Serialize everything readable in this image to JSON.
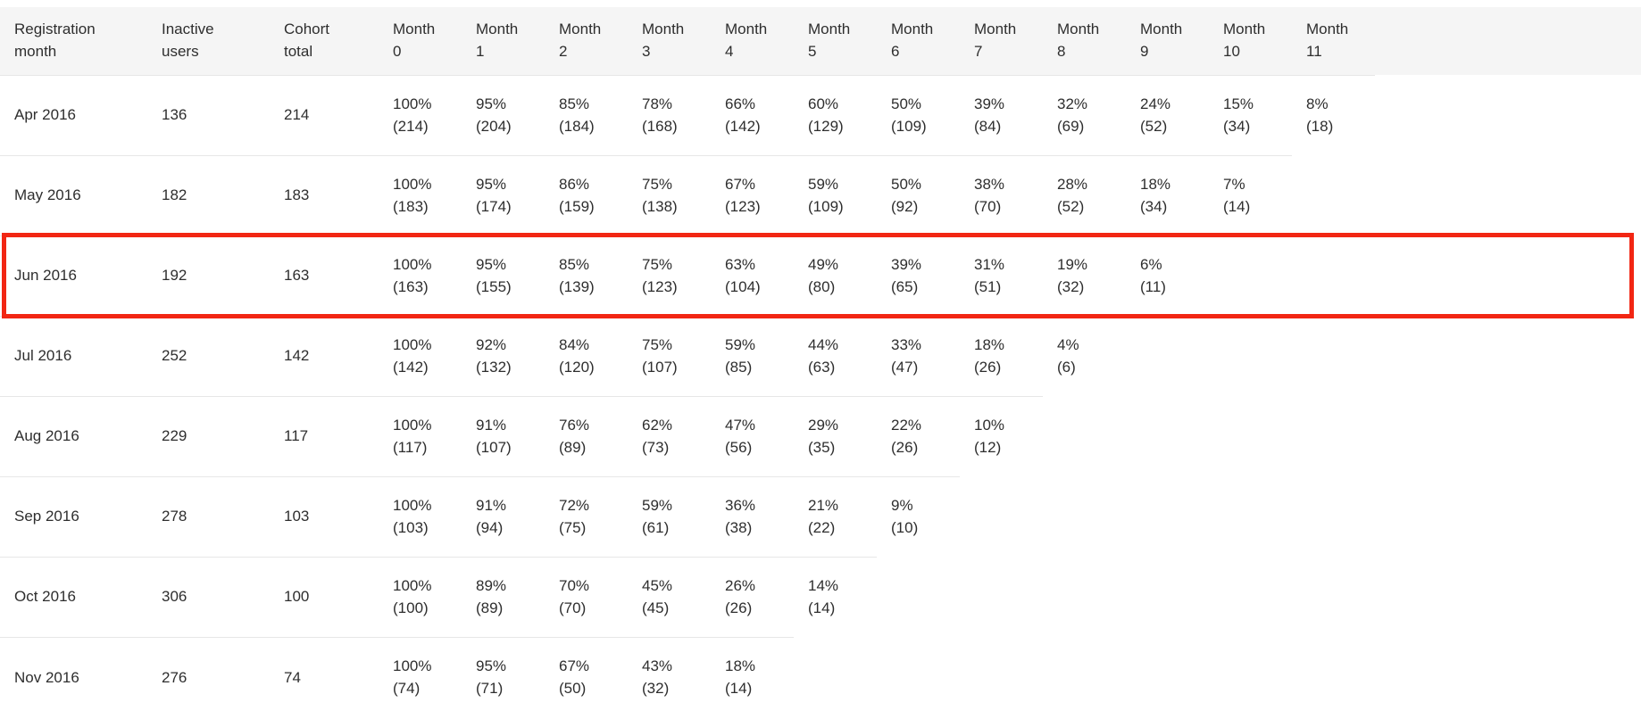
{
  "colors": {
    "highlight_border": "#f22613",
    "header_background": "#f5f5f5",
    "row_border": "#e7e7e7",
    "text": "#2e2e2e"
  },
  "table": {
    "column_headers": [
      "Registration month",
      "Inactive users",
      "Cohort total",
      "Month 0",
      "Month 1",
      "Month 2",
      "Month 3",
      "Month 4",
      "Month 5",
      "Month 6",
      "Month 7",
      "Month 8",
      "Month 9",
      "Month 10",
      "Month 11"
    ],
    "rows": [
      {
        "registration_month": "Apr 2016",
        "inactive_users": "136",
        "cohort_total": "214",
        "highlighted": false,
        "retention": [
          {
            "percent": "100%",
            "count": "(214)"
          },
          {
            "percent": "95%",
            "count": "(204)"
          },
          {
            "percent": "85%",
            "count": "(184)"
          },
          {
            "percent": "78%",
            "count": "(168)"
          },
          {
            "percent": "66%",
            "count": "(142)"
          },
          {
            "percent": "60%",
            "count": "(129)"
          },
          {
            "percent": "50%",
            "count": "(109)"
          },
          {
            "percent": "39%",
            "count": "(84)"
          },
          {
            "percent": "32%",
            "count": "(69)"
          },
          {
            "percent": "24%",
            "count": "(52)"
          },
          {
            "percent": "15%",
            "count": "(34)"
          },
          {
            "percent": "8%",
            "count": "(18)"
          }
        ]
      },
      {
        "registration_month": "May 2016",
        "inactive_users": "182",
        "cohort_total": "183",
        "highlighted": false,
        "retention": [
          {
            "percent": "100%",
            "count": "(183)"
          },
          {
            "percent": "95%",
            "count": "(174)"
          },
          {
            "percent": "86%",
            "count": "(159)"
          },
          {
            "percent": "75%",
            "count": "(138)"
          },
          {
            "percent": "67%",
            "count": "(123)"
          },
          {
            "percent": "59%",
            "count": "(109)"
          },
          {
            "percent": "50%",
            "count": "(92)"
          },
          {
            "percent": "38%",
            "count": "(70)"
          },
          {
            "percent": "28%",
            "count": "(52)"
          },
          {
            "percent": "18%",
            "count": "(34)"
          },
          {
            "percent": "7%",
            "count": "(14)"
          }
        ]
      },
      {
        "registration_month": "Jun 2016",
        "inactive_users": "192",
        "cohort_total": "163",
        "highlighted": true,
        "retention": [
          {
            "percent": "100%",
            "count": "(163)"
          },
          {
            "percent": "95%",
            "count": "(155)"
          },
          {
            "percent": "85%",
            "count": "(139)"
          },
          {
            "percent": "75%",
            "count": "(123)"
          },
          {
            "percent": "63%",
            "count": "(104)"
          },
          {
            "percent": "49%",
            "count": "(80)"
          },
          {
            "percent": "39%",
            "count": "(65)"
          },
          {
            "percent": "31%",
            "count": "(51)"
          },
          {
            "percent": "19%",
            "count": "(32)"
          },
          {
            "percent": "6%",
            "count": "(11)"
          }
        ]
      },
      {
        "registration_month": "Jul 2016",
        "inactive_users": "252",
        "cohort_total": "142",
        "highlighted": false,
        "retention": [
          {
            "percent": "100%",
            "count": "(142)"
          },
          {
            "percent": "92%",
            "count": "(132)"
          },
          {
            "percent": "84%",
            "count": "(120)"
          },
          {
            "percent": "75%",
            "count": "(107)"
          },
          {
            "percent": "59%",
            "count": "(85)"
          },
          {
            "percent": "44%",
            "count": "(63)"
          },
          {
            "percent": "33%",
            "count": "(47)"
          },
          {
            "percent": "18%",
            "count": "(26)"
          },
          {
            "percent": "4%",
            "count": "(6)"
          }
        ]
      },
      {
        "registration_month": "Aug 2016",
        "inactive_users": "229",
        "cohort_total": "117",
        "highlighted": false,
        "retention": [
          {
            "percent": "100%",
            "count": "(117)"
          },
          {
            "percent": "91%",
            "count": "(107)"
          },
          {
            "percent": "76%",
            "count": "(89)"
          },
          {
            "percent": "62%",
            "count": "(73)"
          },
          {
            "percent": "47%",
            "count": "(56)"
          },
          {
            "percent": "29%",
            "count": "(35)"
          },
          {
            "percent": "22%",
            "count": "(26)"
          },
          {
            "percent": "10%",
            "count": "(12)"
          }
        ]
      },
      {
        "registration_month": "Sep 2016",
        "inactive_users": "278",
        "cohort_total": "103",
        "highlighted": false,
        "retention": [
          {
            "percent": "100%",
            "count": "(103)"
          },
          {
            "percent": "91%",
            "count": "(94)"
          },
          {
            "percent": "72%",
            "count": "(75)"
          },
          {
            "percent": "59%",
            "count": "(61)"
          },
          {
            "percent": "36%",
            "count": "(38)"
          },
          {
            "percent": "21%",
            "count": "(22)"
          },
          {
            "percent": "9%",
            "count": "(10)"
          }
        ]
      },
      {
        "registration_month": "Oct 2016",
        "inactive_users": "306",
        "cohort_total": "100",
        "highlighted": false,
        "retention": [
          {
            "percent": "100%",
            "count": "(100)"
          },
          {
            "percent": "89%",
            "count": "(89)"
          },
          {
            "percent": "70%",
            "count": "(70)"
          },
          {
            "percent": "45%",
            "count": "(45)"
          },
          {
            "percent": "26%",
            "count": "(26)"
          },
          {
            "percent": "14%",
            "count": "(14)"
          }
        ]
      },
      {
        "registration_month": "Nov 2016",
        "inactive_users": "276",
        "cohort_total": "74",
        "highlighted": false,
        "retention": [
          {
            "percent": "100%",
            "count": "(74)"
          },
          {
            "percent": "95%",
            "count": "(71)"
          },
          {
            "percent": "67%",
            "count": "(50)"
          },
          {
            "percent": "43%",
            "count": "(32)"
          },
          {
            "percent": "18%",
            "count": "(14)"
          }
        ]
      }
    ]
  }
}
